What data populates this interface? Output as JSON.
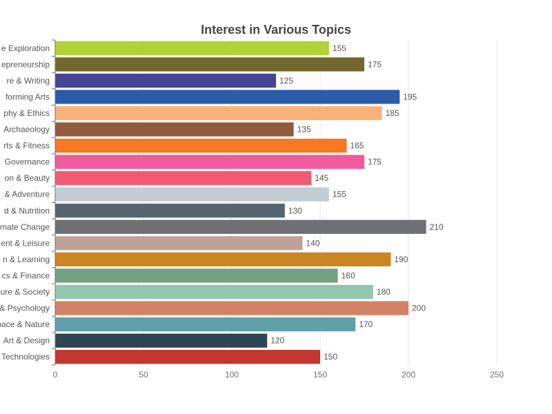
{
  "chart_data": {
    "type": "bar",
    "orientation": "horizontal",
    "title": "Interest in Various Topics",
    "xlabel": "",
    "ylabel": "",
    "xlim": [
      0,
      250
    ],
    "xticks": [
      0,
      50,
      100,
      150,
      200,
      250
    ],
    "grid": true,
    "categories": [
      "Technologies",
      "Art & Design",
      "Space & Nature",
      "& Psychology",
      "ure & Society",
      "cs & Finance",
      "n & Learning",
      "ent & Leisure",
      "mate Change",
      "d & Nutrition",
      "& Adventure",
      "on & Beauty",
      "Governance",
      "rts & Fitness",
      "Archaeology",
      "phy & Ethics",
      "forming Arts",
      "re & Writing",
      "epreneurship",
      "e Exploration"
    ],
    "values": [
      150,
      120,
      170,
      200,
      180,
      160,
      190,
      140,
      210,
      130,
      155,
      145,
      175,
      165,
      135,
      185,
      195,
      125,
      175,
      155
    ],
    "colors": [
      "#c23531",
      "#2f4554",
      "#61a0a8",
      "#d48265",
      "#91c7ae",
      "#749f83",
      "#ca8622",
      "#bda29a",
      "#6e7074",
      "#546570",
      "#c4ccd3",
      "#f05b72",
      "#ef5b9c",
      "#f47920",
      "#905a3d",
      "#fab27b",
      "#2a5caa",
      "#444693",
      "#726930",
      "#b2d235"
    ]
  }
}
